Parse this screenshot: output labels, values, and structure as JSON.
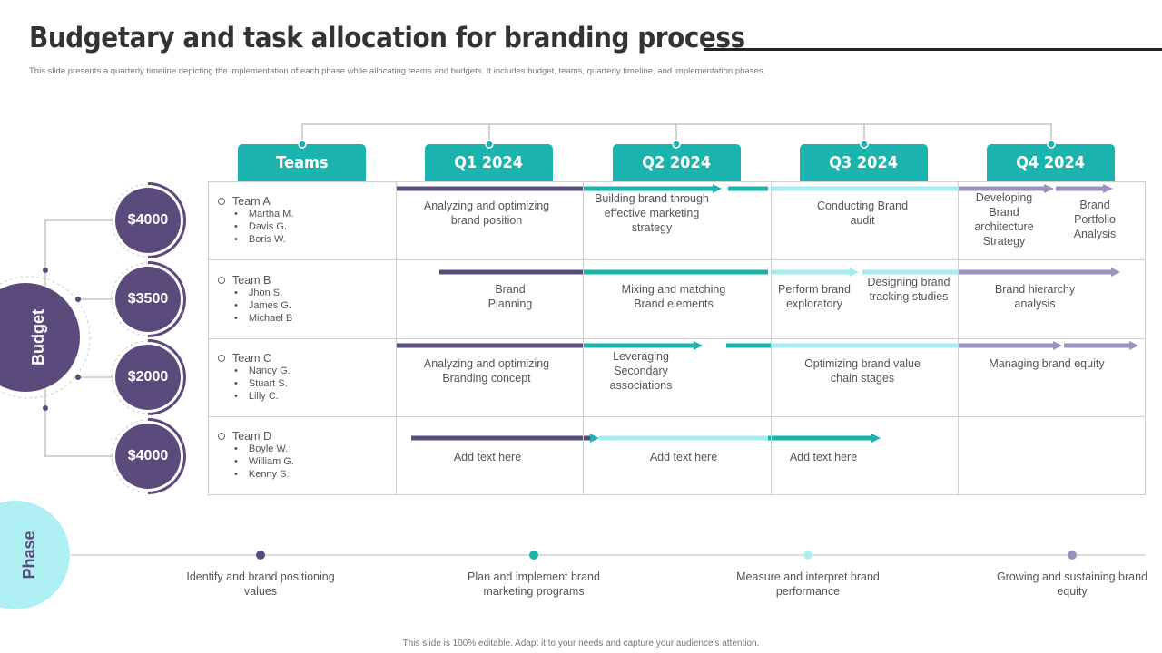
{
  "title": "Budgetary and task allocation for branding process",
  "subtitle": "This slide presents a quarterly timeline depicting the implementation of each phase while allocating teams and budgets. It includes budget, teams, quarterly timeline, and implementation phases.",
  "headers": [
    "Teams",
    "Q1 2024",
    "Q2 2024",
    "Q3 2024",
    "Q4 2024"
  ],
  "budget_label": "Budget",
  "phase_label": "Phase",
  "budgets": [
    "$4000",
    "$3500",
    "$2000",
    "$4000"
  ],
  "teams": [
    {
      "name": "Team A",
      "members": [
        "Martha M.",
        "Davis G.",
        "Boris W."
      ]
    },
    {
      "name": "Team B",
      "members": [
        "Jhon S.",
        "James G.",
        "Michael B"
      ]
    },
    {
      "name": "Team C",
      "members": [
        "Nancy G.",
        "Stuart S.",
        "Lilly C."
      ]
    },
    {
      "name": "Team D",
      "members": [
        "Boyle W.",
        "William G.",
        "Kenny S."
      ]
    }
  ],
  "tasks": {
    "a": [
      "Analyzing and optimizing brand position",
      "Building brand through effective marketing strategy",
      "Conducting Brand audit",
      "Developing Brand architecture Strategy",
      "Brand Portfolio Analysis"
    ],
    "b": [
      "Brand Planning",
      "Mixing and matching Brand elements",
      "Perform brand exploratory",
      "Designing brand tracking studies",
      "Brand hierarchy analysis"
    ],
    "c": [
      "Analyzing and optimizing Branding concept",
      "Leveraging Secondary associations",
      "Optimizing brand value chain stages",
      "Managing brand equity"
    ],
    "d": [
      "Add text here",
      "Add text here",
      "Add text here"
    ]
  },
  "phases": [
    "Identify and brand positioning values",
    "Plan and implement brand marketing programs",
    "Measure and interpret brand performance",
    "Growing and sustaining brand equity"
  ],
  "footer": "This slide is 100% editable. Adapt it to your needs and capture your audience's attention.",
  "colors": {
    "teal": "#1ab3ae",
    "purple": "#5a4b7c",
    "light_teal": "#a6ecef",
    "lavender": "#9b90bf",
    "phase_circle": "#aef0f2"
  }
}
